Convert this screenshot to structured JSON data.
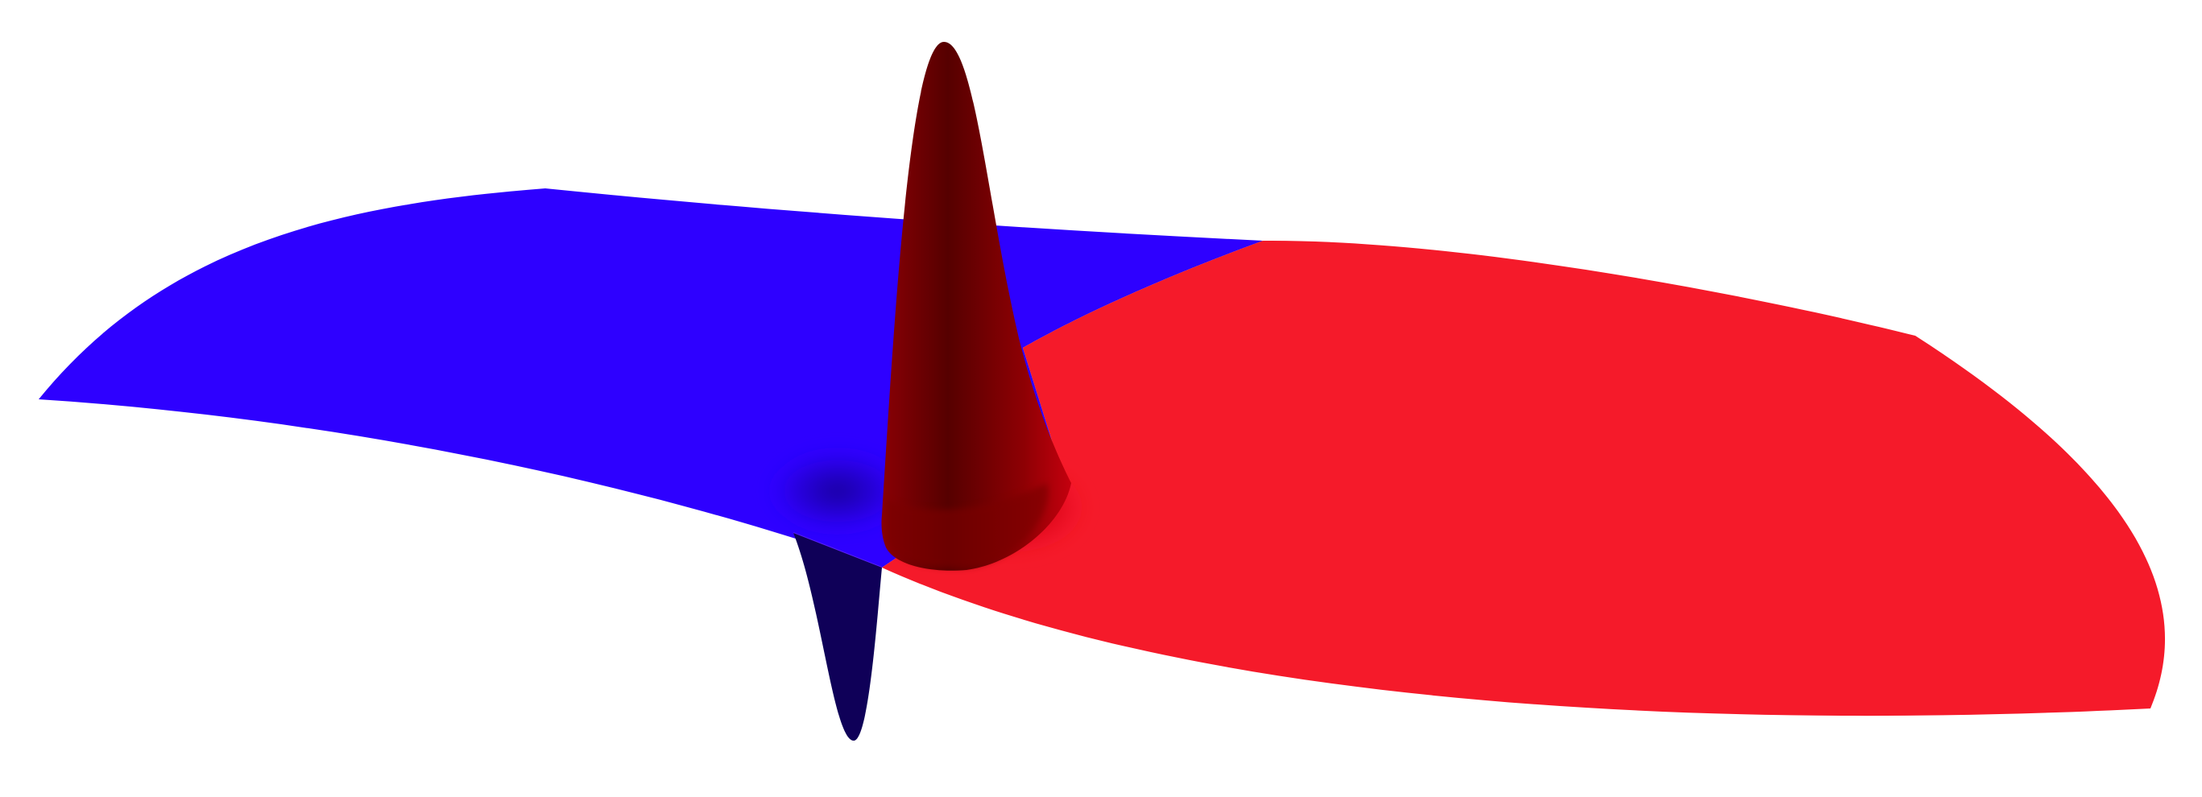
{
  "scene": {
    "description_free": true,
    "colors": {
      "background": "#ffffff",
      "negative_surface": "#2e00ff",
      "positive_surface": "#f51a2a",
      "negative_peak_dark": "#0d0055",
      "positive_peak_dark": "#560000",
      "positive_peak_mid": "#a00006"
    }
  }
}
